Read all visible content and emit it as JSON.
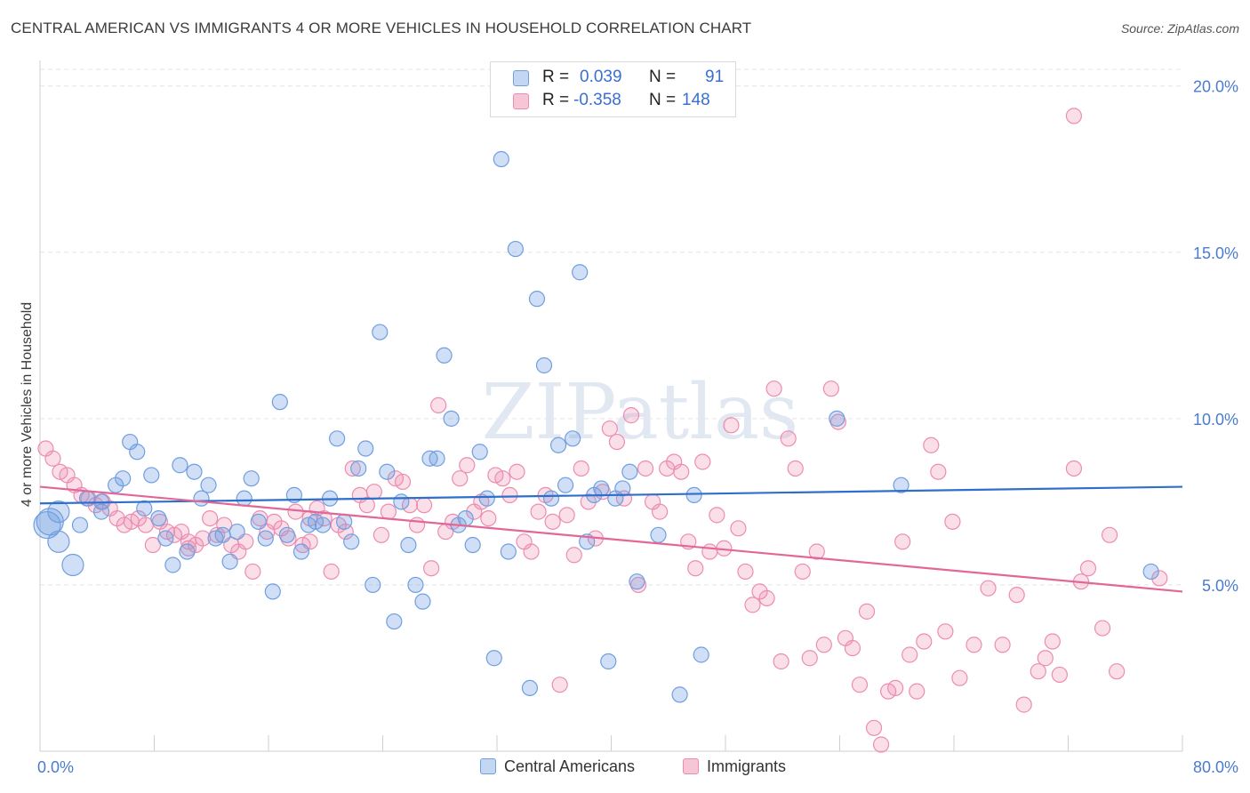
{
  "title": "CENTRAL AMERICAN VS IMMIGRANTS 4 OR MORE VEHICLES IN HOUSEHOLD CORRELATION CHART",
  "source": "Source: ZipAtlas.com",
  "watermark": "ZIPatlas",
  "legend": {
    "rows": [
      {
        "r_label": "R =",
        "r_value": "0.039",
        "n_label": "N =",
        "n_value": "91"
      },
      {
        "r_label": "R =",
        "r_value": "-0.358",
        "n_label": "N =",
        "n_value": "148"
      }
    ]
  },
  "bottom_legend": [
    "Central Americans",
    "Immigrants"
  ],
  "chart_data": {
    "type": "scatter",
    "title": "CENTRAL AMERICAN VS IMMIGRANTS 4 OR MORE VEHICLES IN HOUSEHOLD CORRELATION CHART",
    "xlabel": "",
    "ylabel": "4 or more Vehicles in Household",
    "xlim": [
      0,
      80
    ],
    "ylim": [
      0,
      20.5
    ],
    "x_tick_labels": [
      "0.0%",
      "80.0%"
    ],
    "y_ticks": [
      5,
      10,
      15,
      20
    ],
    "y_tick_labels": [
      "5.0%",
      "10.0%",
      "15.0%",
      "20.0%"
    ],
    "grid": true,
    "legend_placement": "top-center",
    "colors": {
      "Central Americans": "#6f9fe0",
      "Immigrants": "#ec8db0",
      "Central Americans_line": "#2f6fcc",
      "Immigrants_line": "#e26797"
    },
    "series": [
      {
        "name": "Central Americans",
        "stats": {
          "R": 0.039,
          "N": 91
        },
        "trend": {
          "x": [
            0,
            80
          ],
          "y": [
            7.45,
            7.95
          ]
        },
        "points": [
          [
            0.5,
            6.8,
            3
          ],
          [
            0.7,
            6.9,
            3
          ],
          [
            1.3,
            7.2,
            2
          ],
          [
            1.3,
            6.3,
            2
          ],
          [
            2.3,
            5.6,
            2
          ],
          [
            2.8,
            6.8,
            1
          ],
          [
            3.3,
            7.6,
            1
          ],
          [
            4.3,
            7.5,
            1
          ],
          [
            4.3,
            7.2,
            1
          ],
          [
            5.3,
            8.0,
            1
          ],
          [
            5.8,
            8.2,
            1
          ],
          [
            6.3,
            9.3,
            1
          ],
          [
            6.8,
            9.0,
            1
          ],
          [
            7.3,
            7.3,
            1
          ],
          [
            7.8,
            8.3,
            1
          ],
          [
            8.3,
            7.0,
            1
          ],
          [
            8.8,
            6.4,
            1
          ],
          [
            9.3,
            5.6,
            1
          ],
          [
            9.8,
            8.6,
            1
          ],
          [
            10.3,
            6.0,
            1
          ],
          [
            10.8,
            8.4,
            1
          ],
          [
            11.3,
            7.6,
            1
          ],
          [
            11.8,
            8.0,
            1
          ],
          [
            12.3,
            6.4,
            1
          ],
          [
            12.8,
            6.5,
            1
          ],
          [
            13.3,
            5.7,
            1
          ],
          [
            13.8,
            6.6,
            1
          ],
          [
            14.3,
            7.6,
            1
          ],
          [
            14.8,
            8.2,
            1
          ],
          [
            15.3,
            6.9,
            1
          ],
          [
            15.8,
            6.4,
            1
          ],
          [
            16.3,
            4.8,
            1
          ],
          [
            16.8,
            10.5,
            1
          ],
          [
            17.3,
            6.5,
            1
          ],
          [
            17.8,
            7.7,
            1
          ],
          [
            18.3,
            6.0,
            1
          ],
          [
            18.8,
            6.8,
            1
          ],
          [
            19.3,
            6.9,
            1
          ],
          [
            19.8,
            6.8,
            1
          ],
          [
            20.3,
            7.6,
            1
          ],
          [
            20.8,
            9.4,
            1
          ],
          [
            21.3,
            6.9,
            1
          ],
          [
            21.8,
            6.3,
            1
          ],
          [
            22.3,
            8.5,
            1
          ],
          [
            22.8,
            9.1,
            1
          ],
          [
            23.3,
            5.0,
            1
          ],
          [
            23.8,
            12.6,
            1
          ],
          [
            24.3,
            8.4,
            1
          ],
          [
            24.8,
            3.9,
            1
          ],
          [
            25.3,
            7.5,
            1
          ],
          [
            25.8,
            6.2,
            1
          ],
          [
            26.3,
            5.0,
            1
          ],
          [
            26.8,
            4.5,
            1
          ],
          [
            27.3,
            8.8,
            1
          ],
          [
            27.8,
            8.8,
            1
          ],
          [
            28.3,
            11.9,
            1
          ],
          [
            28.8,
            10.0,
            1
          ],
          [
            29.3,
            6.8,
            1
          ],
          [
            29.8,
            7.0,
            1
          ],
          [
            30.3,
            6.2,
            1
          ],
          [
            30.8,
            9.0,
            1
          ],
          [
            31.3,
            7.6,
            1
          ],
          [
            31.8,
            2.8,
            1
          ],
          [
            32.3,
            17.8,
            1
          ],
          [
            32.8,
            6.0,
            1
          ],
          [
            33.3,
            15.1,
            1
          ],
          [
            34.3,
            1.9,
            1
          ],
          [
            34.8,
            13.6,
            1
          ],
          [
            35.3,
            11.6,
            1
          ],
          [
            35.8,
            7.6,
            1
          ],
          [
            36.3,
            9.2,
            1
          ],
          [
            36.8,
            8.0,
            1
          ],
          [
            37.3,
            9.4,
            1
          ],
          [
            37.8,
            14.4,
            1
          ],
          [
            38.3,
            6.3,
            1
          ],
          [
            38.8,
            7.7,
            1
          ],
          [
            39.3,
            7.9,
            1
          ],
          [
            39.8,
            2.7,
            1
          ],
          [
            40.3,
            7.6,
            1
          ],
          [
            40.8,
            7.9,
            1
          ],
          [
            41.3,
            8.4,
            1
          ],
          [
            41.8,
            5.1,
            1
          ],
          [
            43.3,
            6.5,
            1
          ],
          [
            44.8,
            1.7,
            1
          ],
          [
            45.8,
            7.7,
            1
          ],
          [
            46.3,
            2.9,
            1
          ],
          [
            55.8,
            10.0,
            1
          ],
          [
            60.3,
            8.0,
            1
          ],
          [
            77.8,
            5.4,
            1
          ]
        ]
      },
      {
        "name": "Immigrants",
        "stats": {
          "R": -0.358,
          "N": 148
        },
        "trend": {
          "x": [
            0,
            80
          ],
          "y": [
            7.95,
            4.8
          ]
        },
        "points": [
          [
            0.4,
            9.1,
            1
          ],
          [
            0.9,
            8.8,
            1
          ],
          [
            1.4,
            8.4,
            1
          ],
          [
            1.9,
            8.3,
            1
          ],
          [
            2.4,
            8.0,
            1
          ],
          [
            2.9,
            7.7,
            1
          ],
          [
            3.4,
            7.6,
            1
          ],
          [
            3.9,
            7.4,
            1
          ],
          [
            4.4,
            7.5,
            1
          ],
          [
            4.9,
            7.3,
            1
          ],
          [
            5.4,
            7.0,
            1
          ],
          [
            5.9,
            6.8,
            1
          ],
          [
            6.4,
            6.9,
            1
          ],
          [
            6.9,
            7.0,
            1
          ],
          [
            7.4,
            6.8,
            1
          ],
          [
            7.9,
            6.2,
            1
          ],
          [
            8.4,
            6.9,
            1
          ],
          [
            8.9,
            6.6,
            1
          ],
          [
            9.4,
            6.5,
            1
          ],
          [
            9.9,
            6.6,
            1
          ],
          [
            10.4,
            6.3,
            1
          ],
          [
            10.9,
            6.2,
            1
          ],
          [
            11.4,
            6.4,
            1
          ],
          [
            11.9,
            7.0,
            1
          ],
          [
            12.4,
            6.5,
            1
          ],
          [
            12.9,
            6.8,
            1
          ],
          [
            13.4,
            6.2,
            1
          ],
          [
            13.9,
            6.0,
            1
          ],
          [
            14.4,
            6.3,
            1
          ],
          [
            14.9,
            5.4,
            1
          ],
          [
            15.4,
            7.0,
            1
          ],
          [
            15.9,
            6.6,
            1
          ],
          [
            16.4,
            6.9,
            1
          ],
          [
            16.9,
            6.7,
            1
          ],
          [
            17.4,
            6.4,
            1
          ],
          [
            17.9,
            7.2,
            1
          ],
          [
            18.4,
            6.2,
            1
          ],
          [
            18.9,
            7.0,
            1
          ],
          [
            19.4,
            7.3,
            1
          ],
          [
            19.9,
            7.0,
            1
          ],
          [
            20.4,
            5.4,
            1
          ],
          [
            20.9,
            6.8,
            1
          ],
          [
            21.4,
            6.6,
            1
          ],
          [
            21.9,
            8.5,
            1
          ],
          [
            22.4,
            7.7,
            1
          ],
          [
            22.9,
            7.4,
            1
          ],
          [
            23.4,
            7.8,
            1
          ],
          [
            23.9,
            6.5,
            1
          ],
          [
            24.4,
            7.2,
            1
          ],
          [
            24.9,
            8.2,
            1
          ],
          [
            25.4,
            8.1,
            1
          ],
          [
            25.9,
            7.4,
            1
          ],
          [
            26.4,
            6.8,
            1
          ],
          [
            26.9,
            7.4,
            1
          ],
          [
            27.4,
            5.5,
            1
          ],
          [
            27.9,
            10.4,
            1
          ],
          [
            28.4,
            6.6,
            1
          ],
          [
            28.9,
            6.9,
            1
          ],
          [
            29.4,
            8.2,
            1
          ],
          [
            29.9,
            8.6,
            1
          ],
          [
            30.4,
            7.2,
            1
          ],
          [
            30.9,
            7.5,
            1
          ],
          [
            31.4,
            7.0,
            1
          ],
          [
            31.9,
            8.3,
            1
          ],
          [
            32.4,
            8.2,
            1
          ],
          [
            32.9,
            7.7,
            1
          ],
          [
            33.4,
            8.4,
            1
          ],
          [
            33.9,
            6.3,
            1
          ],
          [
            34.4,
            6.0,
            1
          ],
          [
            34.9,
            7.2,
            1
          ],
          [
            35.4,
            7.7,
            1
          ],
          [
            35.9,
            6.9,
            1
          ],
          [
            36.4,
            2.0,
            1
          ],
          [
            36.9,
            7.1,
            1
          ],
          [
            37.4,
            5.9,
            1
          ],
          [
            37.9,
            8.5,
            1
          ],
          [
            38.4,
            7.5,
            1
          ],
          [
            38.9,
            6.4,
            1
          ],
          [
            39.4,
            7.8,
            1
          ],
          [
            39.9,
            9.7,
            1
          ],
          [
            40.4,
            9.3,
            1
          ],
          [
            40.9,
            7.6,
            1
          ],
          [
            41.4,
            10.1,
            1
          ],
          [
            41.9,
            5.0,
            1
          ],
          [
            42.4,
            8.5,
            1
          ],
          [
            42.9,
            7.5,
            1
          ],
          [
            43.4,
            7.2,
            1
          ],
          [
            43.9,
            8.5,
            1
          ],
          [
            44.4,
            8.7,
            1
          ],
          [
            44.9,
            8.4,
            1
          ],
          [
            45.4,
            6.3,
            1
          ],
          [
            45.9,
            5.5,
            1
          ],
          [
            46.4,
            8.7,
            1
          ],
          [
            46.9,
            6.0,
            1
          ],
          [
            47.4,
            7.1,
            1
          ],
          [
            47.9,
            6.1,
            1
          ],
          [
            48.4,
            9.8,
            1
          ],
          [
            48.9,
            6.7,
            1
          ],
          [
            49.4,
            5.4,
            1
          ],
          [
            49.9,
            4.4,
            1
          ],
          [
            50.4,
            4.8,
            1
          ],
          [
            50.9,
            4.6,
            1
          ],
          [
            51.4,
            10.9,
            1
          ],
          [
            51.9,
            2.7,
            1
          ],
          [
            52.4,
            9.4,
            1
          ],
          [
            52.9,
            8.5,
            1
          ],
          [
            53.4,
            5.4,
            1
          ],
          [
            53.9,
            2.8,
            1
          ],
          [
            54.4,
            6.0,
            1
          ],
          [
            54.9,
            3.2,
            1
          ],
          [
            55.4,
            10.9,
            1
          ],
          [
            55.9,
            9.9,
            1
          ],
          [
            56.4,
            3.4,
            1
          ],
          [
            56.9,
            3.1,
            1
          ],
          [
            57.4,
            2.0,
            1
          ],
          [
            57.9,
            4.2,
            1
          ],
          [
            58.4,
            0.7,
            1
          ],
          [
            58.9,
            0.2,
            1
          ],
          [
            59.4,
            1.8,
            1
          ],
          [
            59.9,
            1.9,
            1
          ],
          [
            60.4,
            6.3,
            1
          ],
          [
            60.9,
            2.9,
            1
          ],
          [
            61.4,
            1.8,
            1
          ],
          [
            61.9,
            3.3,
            1
          ],
          [
            62.4,
            9.2,
            1
          ],
          [
            62.9,
            8.4,
            1
          ],
          [
            63.4,
            3.6,
            1
          ],
          [
            63.9,
            6.9,
            1
          ],
          [
            64.4,
            2.2,
            1
          ],
          [
            65.4,
            3.2,
            1
          ],
          [
            66.4,
            4.9,
            1
          ],
          [
            67.4,
            3.2,
            1
          ],
          [
            68.4,
            4.7,
            1
          ],
          [
            68.9,
            1.4,
            1
          ],
          [
            69.9,
            2.4,
            1
          ],
          [
            70.4,
            2.8,
            1
          ],
          [
            70.9,
            3.3,
            1
          ],
          [
            71.4,
            2.3,
            1
          ],
          [
            72.4,
            8.5,
            1
          ],
          [
            72.9,
            5.1,
            1
          ],
          [
            73.4,
            5.5,
            1
          ],
          [
            74.4,
            3.7,
            1
          ],
          [
            74.9,
            6.5,
            1
          ],
          [
            75.4,
            2.4,
            1
          ],
          [
            72.4,
            19.1,
            1
          ],
          [
            78.4,
            5.2,
            1
          ],
          [
            10.4,
            6.1,
            1
          ],
          [
            18.9,
            6.3,
            1
          ]
        ]
      }
    ]
  }
}
